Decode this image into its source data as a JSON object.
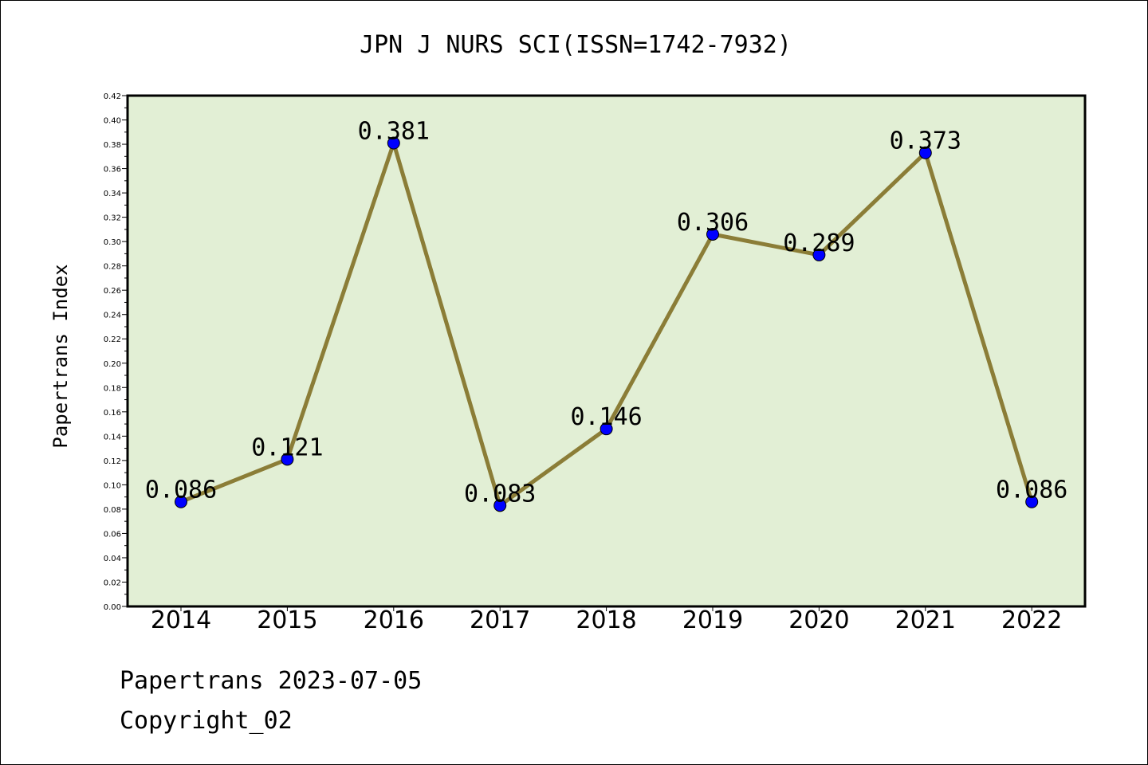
{
  "chart_data": {
    "type": "line",
    "title": "JPN J NURS SCI(ISSN=1742-7932)",
    "xlabel": "",
    "ylabel": "Papertrans Index",
    "categories": [
      "2014",
      "2015",
      "2016",
      "2017",
      "2018",
      "2019",
      "2020",
      "2021",
      "2022"
    ],
    "values": [
      0.086,
      0.121,
      0.381,
      0.083,
      0.146,
      0.306,
      0.289,
      0.373,
      0.086
    ],
    "data_labels": [
      "0.086",
      "0.121",
      "0.381",
      "0.083",
      "0.146",
      "0.306",
      "0.289",
      "0.373",
      "0.086"
    ],
    "ylim": [
      0,
      0.42
    ],
    "y_ticks": [
      "0.00",
      "0.02",
      "0.04",
      "0.06",
      "0.08",
      "0.10",
      "0.12",
      "0.14",
      "0.16",
      "0.18",
      "0.20",
      "0.22",
      "0.24",
      "0.26",
      "0.28",
      "0.30",
      "0.32",
      "0.34",
      "0.36",
      "0.38",
      "0.40",
      "0.42"
    ],
    "grid": false,
    "colors": {
      "plot_background": "#e2efd5",
      "line": "#8b7d37",
      "marker": "#0000ff"
    }
  },
  "footer": {
    "line1": "Papertrans 2023-07-05",
    "line2": "Copyright_02"
  }
}
